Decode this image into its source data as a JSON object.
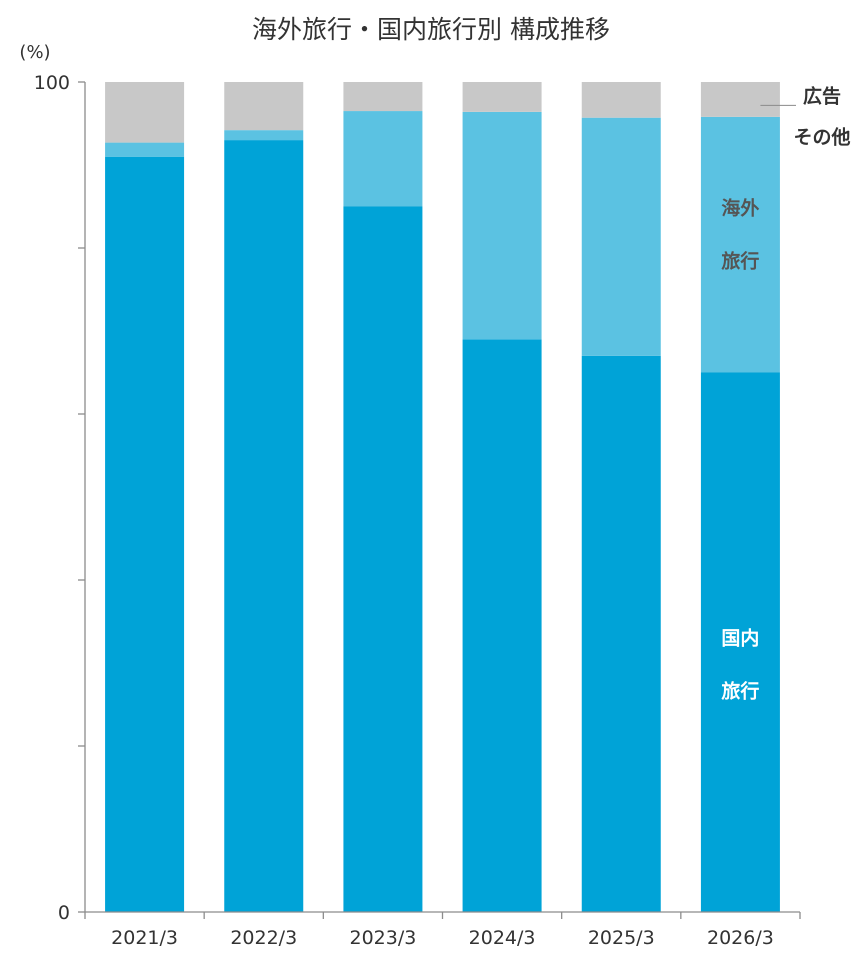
{
  "chart_data": {
    "type": "bar",
    "stacked": true,
    "title": "海外旅行・国内旅行別 構成推移",
    "y_unit": "(%)",
    "ylim": [
      0,
      100
    ],
    "y_tick_labels": [
      "0",
      "100"
    ],
    "y_ticks": [
      0,
      20,
      40,
      60,
      80,
      100
    ],
    "grid": false,
    "categories": [
      "2021/3",
      "2022/3",
      "2023/3",
      "2024/3",
      "2025/3",
      "2026/3"
    ],
    "series": [
      {
        "name": "国内旅行",
        "color": "#00a3d7",
        "values": [
          91,
          93,
          85,
          69,
          67,
          65
        ]
      },
      {
        "name": "海外旅行",
        "color": "#5bc2e2",
        "values": [
          1.7,
          1.2,
          11.5,
          27.4,
          28.7,
          30.8
        ]
      },
      {
        "name": "広告その他",
        "color": "#c8c8c8",
        "values": [
          7.3,
          5.8,
          3.5,
          3.6,
          4.3,
          4.2
        ]
      }
    ],
    "annotations": {
      "other_line1": "広告",
      "other_line2": "その他",
      "overseas_line1": "海外",
      "overseas_line2": "旅行",
      "domestic_line1": "国内",
      "domestic_line2": "旅行"
    }
  }
}
